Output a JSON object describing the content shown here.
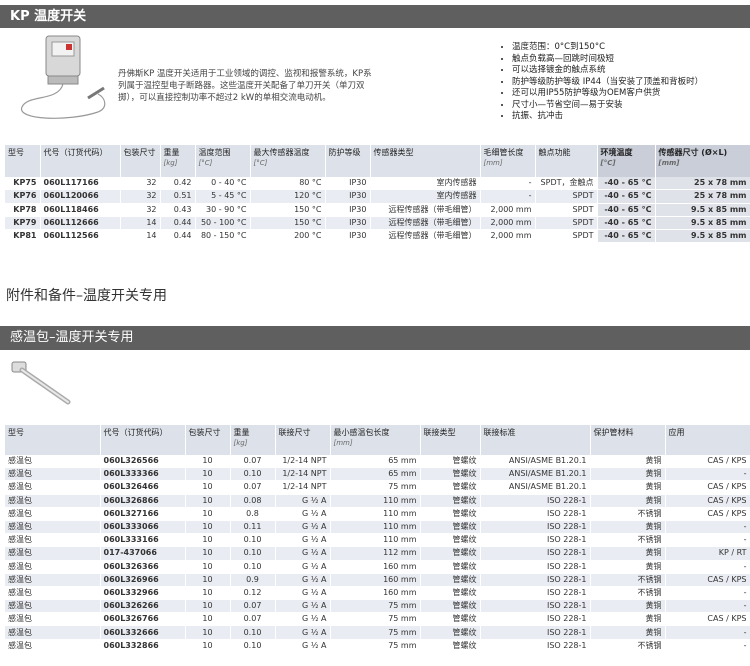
{
  "header": {
    "title": "KP 温度开关"
  },
  "intro": "丹佛斯KP 温度开关适用于工业领域的调控、监视和报警系统，KP系列属于温控型电子断路器。这些温度开关配备了单刀开关（单刀双掷），可以直接控制功率不超过2 kW的单相交流电动机。",
  "bullets": [
    "温度范围：0°C到150°C",
    "触点负载高—回跳时间极短",
    "可以选择镀金的触点系统",
    "防护等级防护等级 IP44（当安装了顶盖和背板时）",
    "还可以用IP55防护等级为OEM客户供货",
    "尺寸小—节省空间—易于安装",
    "抗振、抗冲击"
  ],
  "table1": {
    "columns": [
      {
        "label": "型号"
      },
      {
        "label": "代号（订货代码）"
      },
      {
        "label": "包装尺寸"
      },
      {
        "label": "重量",
        "unit": "[kg]"
      },
      {
        "label": "温度范围",
        "unit": "[°C]"
      },
      {
        "label": "最大传感器温度",
        "unit": "[°C]"
      },
      {
        "label": "防护等级"
      },
      {
        "label": "传感器类型"
      },
      {
        "label": "毛细管长度",
        "unit": "[mm]"
      },
      {
        "label": "触点功能"
      },
      {
        "label": "环境温度",
        "unit": "[°C]"
      },
      {
        "label": "传感器尺寸 (Ø×L)",
        "unit": "[mm]"
      }
    ],
    "rows": [
      [
        "KP75",
        "060L117166",
        "32",
        "0.42",
        "0 - 40 °C",
        "80 °C",
        "IP30",
        "室内传感器",
        "-",
        "SPDT，金触点",
        "-40 - 65 °C",
        "25 x 78 mm"
      ],
      [
        "KP76",
        "060L120066",
        "32",
        "0.51",
        "5 - 45 °C",
        "120 °C",
        "IP30",
        "室内传感器",
        "-",
        "SPDT",
        "-40 - 65 °C",
        "25 x 78 mm"
      ],
      [
        "KP78",
        "060L118466",
        "32",
        "0.43",
        "30 - 90 °C",
        "150 °C",
        "IP30",
        "远程传感器（带毛细管）",
        "2,000 mm",
        "SPDT",
        "-40 - 65 °C",
        "9.5 x 85 mm"
      ],
      [
        "KP79",
        "060L112666",
        "14",
        "0.44",
        "50 - 100 °C",
        "150 °C",
        "IP30",
        "远程传感器（带毛细管）",
        "2,000 mm",
        "SPDT",
        "-40 - 65 °C",
        "9.5 x 85 mm"
      ],
      [
        "KP81",
        "060L112566",
        "14",
        "0.44",
        "80 - 150 °C",
        "200 °C",
        "IP30",
        "远程传感器（带毛细管）",
        "2,000 mm",
        "SPDT",
        "-40 - 65 °C",
        "9.5 x 85 mm"
      ]
    ]
  },
  "section": {
    "title": "附件和备件–温度开关专用",
    "subtitle": "感温包–温度开关专用"
  },
  "table2": {
    "columns": [
      {
        "label": "型号"
      },
      {
        "label": "代号（订货代码）"
      },
      {
        "label": "包装尺寸"
      },
      {
        "label": "重量",
        "unit": "[kg]"
      },
      {
        "label": "联接尺寸"
      },
      {
        "label": "最小感温包长度",
        "unit": "[mm]"
      },
      {
        "label": "联接类型"
      },
      {
        "label": "联接标准"
      },
      {
        "label": "保护管材料"
      },
      {
        "label": "应用"
      }
    ],
    "rows": [
      [
        "感温包",
        "060L326566",
        "10",
        "0.07",
        "1/2-14 NPT",
        "65 mm",
        "管螺纹",
        "ANSI/ASME B1.20.1",
        "黄铜",
        "CAS / KPS"
      ],
      [
        "感温包",
        "060L333366",
        "10",
        "0.10",
        "1/2-14 NPT",
        "65 mm",
        "管螺纹",
        "ANSI/ASME B1.20.1",
        "黄铜",
        "-"
      ],
      [
        "感温包",
        "060L326466",
        "10",
        "0.07",
        "1/2-14 NPT",
        "75 mm",
        "管螺纹",
        "ANSI/ASME B1.20.1",
        "黄铜",
        "CAS / KPS"
      ],
      [
        "感温包",
        "060L326866",
        "10",
        "0.08",
        "G ½ A",
        "110 mm",
        "管螺纹",
        "ISO 228-1",
        "黄铜",
        "CAS / KPS"
      ],
      [
        "感温包",
        "060L327166",
        "10",
        "0.8",
        "G ½ A",
        "110 mm",
        "管螺纹",
        "ISO 228-1",
        "不锈钢",
        "CAS / KPS"
      ],
      [
        "感温包",
        "060L333066",
        "10",
        "0.11",
        "G ½ A",
        "110 mm",
        "管螺纹",
        "ISO 228-1",
        "黄铜",
        "-"
      ],
      [
        "感温包",
        "060L333166",
        "10",
        "0.10",
        "G ½ A",
        "110 mm",
        "管螺纹",
        "ISO 228-1",
        "不锈钢",
        "-"
      ],
      [
        "感温包",
        "017-437066",
        "10",
        "0.10",
        "G ½ A",
        "112 mm",
        "管螺纹",
        "ISO 228-1",
        "黄铜",
        "KP / RT"
      ],
      [
        "感温包",
        "060L326366",
        "10",
        "0.10",
        "G ½ A",
        "160 mm",
        "管螺纹",
        "ISO 228-1",
        "黄铜",
        "-"
      ],
      [
        "感温包",
        "060L326966",
        "10",
        "0.9",
        "G ½ A",
        "160 mm",
        "管螺纹",
        "ISO 228-1",
        "不锈钢",
        "CAS / KPS"
      ],
      [
        "感温包",
        "060L332966",
        "10",
        "0.12",
        "G ½ A",
        "160 mm",
        "管螺纹",
        "ISO 228-1",
        "不锈钢",
        "-"
      ],
      [
        "感温包",
        "060L326266",
        "10",
        "0.07",
        "G ½ A",
        "75 mm",
        "管螺纹",
        "ISO 228-1",
        "黄铜",
        "-"
      ],
      [
        "感温包",
        "060L326766",
        "10",
        "0.07",
        "G ½ A",
        "75 mm",
        "管螺纹",
        "ISO 228-1",
        "黄铜",
        "CAS / KPS"
      ],
      [
        "感温包",
        "060L332666",
        "10",
        "0.10",
        "G ½ A",
        "75 mm",
        "管螺纹",
        "ISO 228-1",
        "黄铜",
        "-"
      ],
      [
        "感温包",
        "060L332866",
        "10",
        "0.10",
        "G ½ A",
        "75 mm",
        "管螺纹",
        "ISO 228-1",
        "不锈钢",
        "-"
      ]
    ]
  }
}
